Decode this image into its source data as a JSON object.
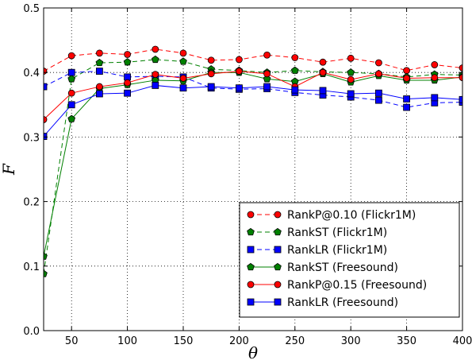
{
  "chart_data": {
    "type": "line",
    "xlabel": "θ",
    "ylabel": "F",
    "xlim": [
      25,
      400
    ],
    "ylim": [
      0.0,
      0.5
    ],
    "xticks": [
      50,
      100,
      150,
      200,
      250,
      300,
      350,
      400
    ],
    "yticks": [
      0.0,
      0.1,
      0.2,
      0.3,
      0.4,
      0.5
    ],
    "xtick_labels": [
      "50",
      "100",
      "150",
      "200",
      "250",
      "300",
      "350",
      "400"
    ],
    "ytick_labels": [
      "0.0",
      "0.1",
      "0.2",
      "0.3",
      "0.4",
      "0.5"
    ],
    "grid": true,
    "legend_position": "lower-right",
    "x": [
      25,
      50,
      75,
      100,
      125,
      150,
      175,
      200,
      225,
      250,
      275,
      300,
      325,
      350,
      375,
      400
    ],
    "series": [
      {
        "name": "RankP@0.10 (Flickr1M)",
        "color": "#ff0000",
        "line": "dashed",
        "marker": "circle",
        "values": [
          0.402,
          0.426,
          0.43,
          0.428,
          0.436,
          0.43,
          0.419,
          0.42,
          0.427,
          0.423,
          0.416,
          0.422,
          0.415,
          0.403,
          0.412,
          0.407
        ]
      },
      {
        "name": "RankST (Flickr1M)",
        "color": "#008000",
        "line": "dashed",
        "marker": "pentagon",
        "values": [
          0.088,
          0.39,
          0.415,
          0.416,
          0.42,
          0.417,
          0.405,
          0.403,
          0.4,
          0.403,
          0.401,
          0.4,
          0.398,
          0.393,
          0.397,
          0.396
        ]
      },
      {
        "name": "RankLR (Flickr1M)",
        "color": "#0000ff",
        "line": "dashed",
        "marker": "square",
        "values": [
          0.378,
          0.4,
          0.402,
          0.393,
          0.394,
          0.393,
          0.376,
          0.374,
          0.375,
          0.369,
          0.365,
          0.362,
          0.357,
          0.346,
          0.353,
          0.354
        ]
      },
      {
        "name": "RankST (Freesound)",
        "color": "#008000",
        "line": "solid",
        "marker": "pentagon",
        "values": [
          0.115,
          0.328,
          0.375,
          0.381,
          0.388,
          0.387,
          0.4,
          0.4,
          0.39,
          0.386,
          0.398,
          0.385,
          0.395,
          0.388,
          0.388,
          0.393
        ]
      },
      {
        "name": "RankP@0.15 (Freesound)",
        "color": "#ff0000",
        "line": "solid",
        "marker": "circle",
        "values": [
          0.327,
          0.368,
          0.378,
          0.384,
          0.397,
          0.391,
          0.398,
          0.402,
          0.398,
          0.378,
          0.4,
          0.389,
          0.398,
          0.391,
          0.392,
          0.392
        ]
      },
      {
        "name": "RankLR (Freesound)",
        "color": "#0000ff",
        "line": "solid",
        "marker": "square",
        "values": [
          0.301,
          0.35,
          0.367,
          0.368,
          0.38,
          0.376,
          0.378,
          0.376,
          0.378,
          0.373,
          0.372,
          0.367,
          0.368,
          0.359,
          0.361,
          0.358
        ]
      }
    ]
  }
}
